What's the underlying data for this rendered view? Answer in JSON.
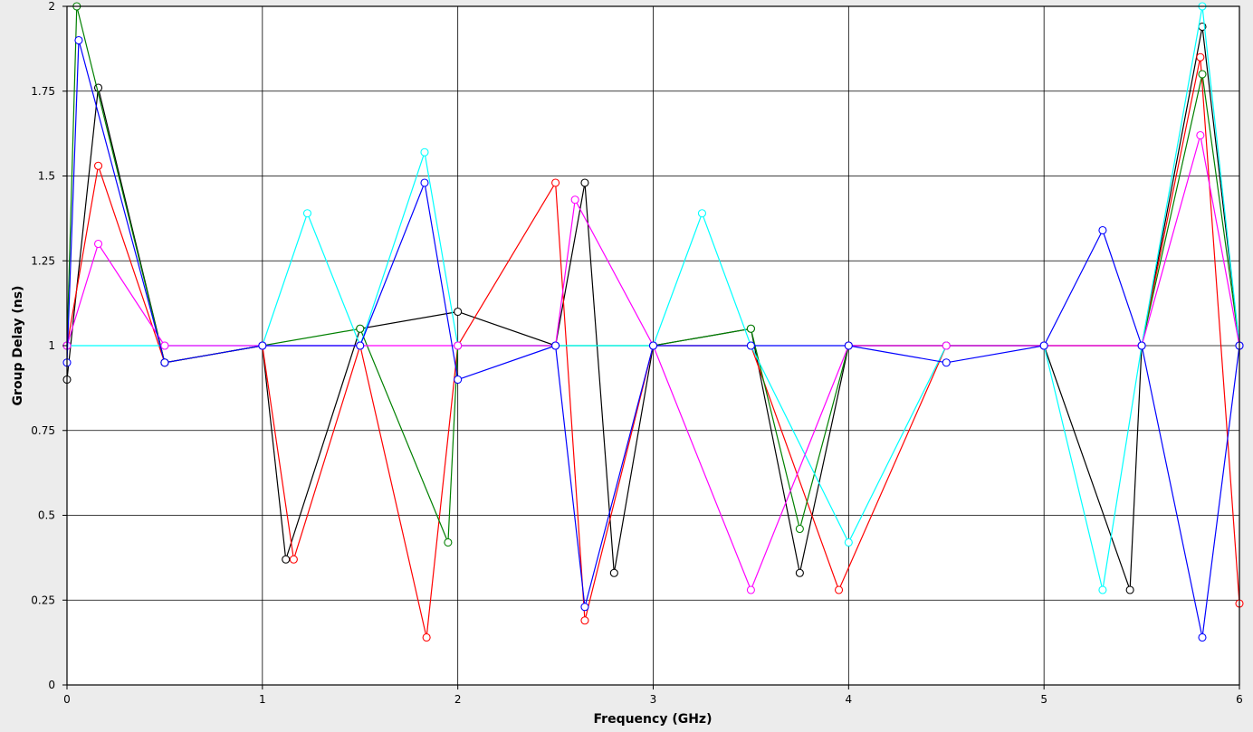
{
  "chart_data": {
    "type": "line",
    "title": "",
    "xlabel": "Frequency (GHz)",
    "ylabel": "Group Delay (ns)",
    "xlim": [
      0,
      6
    ],
    "ylim": [
      0,
      2
    ],
    "xticks": [
      "0",
      "1",
      "2",
      "3",
      "4",
      "5",
      "6"
    ],
    "yticks": [
      "0",
      "0.25",
      "0.5",
      "0.75",
      "1",
      "1.25",
      "1.5",
      "1.75",
      "2"
    ],
    "grid": true,
    "legend": "none",
    "marker": "open-circle",
    "series": [
      {
        "color": "#000000",
        "x": [
          0.0,
          0.16,
          0.5,
          1.0,
          1.12,
          1.5,
          2.0,
          2.5,
          2.65,
          2.8,
          3.0,
          3.5,
          3.75,
          4.0,
          4.5,
          5.0,
          5.44,
          5.5,
          5.81,
          6.0
        ],
        "values": [
          0.9,
          1.76,
          0.95,
          1.0,
          0.37,
          1.05,
          1.1,
          1.0,
          1.48,
          0.33,
          1.0,
          1.05,
          0.33,
          1.0,
          1.0,
          1.0,
          0.28,
          1.0,
          1.94,
          1.0
        ]
      },
      {
        "color": "#ff0000",
        "x": [
          0.0,
          0.16,
          0.5,
          1.0,
          1.16,
          1.5,
          1.84,
          2.0,
          2.5,
          2.65,
          3.0,
          3.5,
          3.95,
          4.5,
          5.0,
          5.5,
          5.8,
          6.0
        ],
        "values": [
          1.0,
          1.53,
          0.95,
          1.0,
          0.37,
          1.0,
          0.14,
          1.0,
          1.48,
          0.19,
          1.0,
          1.0,
          0.28,
          1.0,
          1.0,
          1.0,
          1.85,
          0.24
        ]
      },
      {
        "color": "#008000",
        "x": [
          0.0,
          0.05,
          0.5,
          1.0,
          1.5,
          1.95,
          2.0,
          2.5,
          3.0,
          3.5,
          3.75,
          4.0,
          4.5,
          5.0,
          5.5,
          5.81,
          6.0
        ],
        "values": [
          1.0,
          2.0,
          0.95,
          1.0,
          1.05,
          0.42,
          1.0,
          1.0,
          1.0,
          1.05,
          0.46,
          1.0,
          1.0,
          1.0,
          1.0,
          1.8,
          1.0
        ]
      },
      {
        "color": "#00ffff",
        "x": [
          0.0,
          0.5,
          1.0,
          1.23,
          1.5,
          1.83,
          2.0,
          2.5,
          3.0,
          3.25,
          3.5,
          4.0,
          4.5,
          5.0,
          5.3,
          5.5,
          5.81,
          6.0
        ],
        "values": [
          1.0,
          1.0,
          1.0,
          1.39,
          1.0,
          1.57,
          1.0,
          1.0,
          1.0,
          1.39,
          1.0,
          0.42,
          1.0,
          1.0,
          0.28,
          1.0,
          2.0,
          1.0
        ]
      },
      {
        "color": "#ff00ff",
        "x": [
          0.0,
          0.16,
          0.5,
          1.0,
          1.5,
          2.0,
          2.5,
          2.6,
          3.0,
          3.5,
          4.0,
          4.5,
          5.0,
          5.5,
          5.8,
          6.0
        ],
        "values": [
          1.0,
          1.3,
          1.0,
          1.0,
          1.0,
          1.0,
          1.0,
          1.43,
          1.0,
          0.28,
          1.0,
          1.0,
          1.0,
          1.0,
          1.62,
          1.0
        ]
      },
      {
        "color": "#0000ff",
        "x": [
          0.0,
          0.06,
          0.5,
          1.0,
          1.5,
          1.83,
          2.0,
          2.5,
          2.65,
          3.0,
          3.5,
          4.0,
          4.5,
          5.0,
          5.3,
          5.5,
          5.81,
          6.0
        ],
        "values": [
          0.95,
          1.9,
          0.95,
          1.0,
          1.0,
          1.48,
          0.9,
          1.0,
          0.23,
          1.0,
          1.0,
          1.0,
          0.95,
          1.0,
          1.34,
          1.0,
          0.14,
          1.0
        ]
      }
    ]
  }
}
